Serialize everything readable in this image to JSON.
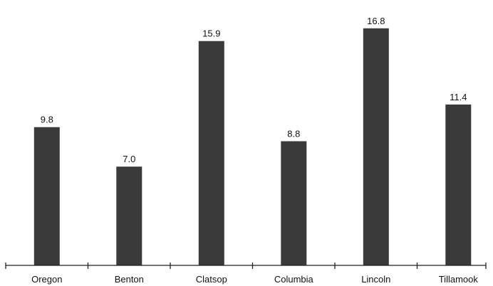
{
  "chart_data": {
    "type": "bar",
    "title": "",
    "xlabel": "",
    "ylabel": "",
    "categories": [
      "Oregon",
      "Benton",
      "Clatsop",
      "Columbia",
      "Lincoln",
      "Tillamook"
    ],
    "values": [
      9.8,
      7.0,
      15.9,
      8.8,
      16.8,
      11.4
    ],
    "value_labels": [
      "9.8",
      "7.0",
      "15.9",
      "8.8",
      "16.8",
      "11.4"
    ],
    "ylim": [
      0,
      17.8
    ],
    "grid": false,
    "legend": "none",
    "colors": {
      "bar": "#3a3a3a",
      "axis": "#222222",
      "text": "#111111"
    }
  }
}
